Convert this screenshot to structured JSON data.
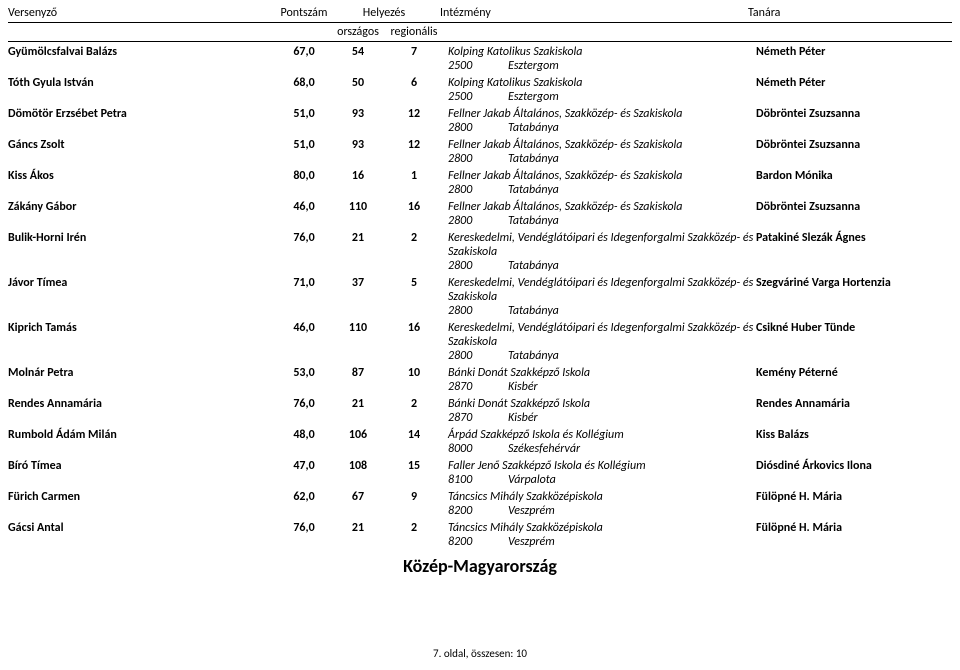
{
  "headers": {
    "name": "Versenyző",
    "score": "Pontszám",
    "place": "Helyezés",
    "nat": "országos",
    "reg": "regionális",
    "institution": "Intézmény",
    "teacher": "Tanára"
  },
  "entries": [
    {
      "name": "Gyümölcsfalvai Balázs",
      "score": "67,0",
      "nat": "54",
      "reg": "7",
      "institution": "Kolping Katolikus Szakiskola",
      "teacher": "Németh Péter",
      "zip": "2500",
      "city": "Esztergom"
    },
    {
      "name": "Tóth Gyula István",
      "score": "68,0",
      "nat": "50",
      "reg": "6",
      "institution": "Kolping Katolikus Szakiskola",
      "teacher": "Németh Péter",
      "zip": "2500",
      "city": "Esztergom"
    },
    {
      "name": "Dömötör Erzsébet Petra",
      "score": "51,0",
      "nat": "93",
      "reg": "12",
      "institution": "Fellner Jakab Általános, Szakközép- és Szakiskola",
      "teacher": "Döbröntei Zsuzsanna",
      "zip": "2800",
      "city": "Tatabánya"
    },
    {
      "name": "Gáncs Zsolt",
      "score": "51,0",
      "nat": "93",
      "reg": "12",
      "institution": "Fellner Jakab Általános, Szakközép- és Szakiskola",
      "teacher": "Döbröntei Zsuzsanna",
      "zip": "2800",
      "city": "Tatabánya"
    },
    {
      "name": "Kiss Ákos",
      "score": "80,0",
      "nat": "16",
      "reg": "1",
      "institution": "Fellner Jakab Általános, Szakközép- és Szakiskola",
      "teacher": "Bardon Mónika",
      "zip": "2800",
      "city": "Tatabánya"
    },
    {
      "name": "Zákány Gábor",
      "score": "46,0",
      "nat": "110",
      "reg": "16",
      "institution": "Fellner Jakab Általános, Szakközép- és Szakiskola",
      "teacher": "Döbröntei Zsuzsanna",
      "zip": "2800",
      "city": "Tatabánya"
    },
    {
      "name": "Bulik-Horni Irén",
      "score": "76,0",
      "nat": "21",
      "reg": "2",
      "institution": "Kereskedelmi, Vendéglátóipari és Idegenforgalmi Szakközép- és Szakiskola",
      "teacher": "Patakiné Slezák Ágnes",
      "zip": "2800",
      "city": "Tatabánya"
    },
    {
      "name": "Jávor Tímea",
      "score": "71,0",
      "nat": "37",
      "reg": "5",
      "institution": "Kereskedelmi, Vendéglátóipari és Idegenforgalmi Szakközép- és Szakiskola",
      "teacher": "Szegváriné Varga Hortenzia",
      "zip": "2800",
      "city": "Tatabánya"
    },
    {
      "name": "Kiprich Tamás",
      "score": "46,0",
      "nat": "110",
      "reg": "16",
      "institution": "Kereskedelmi, Vendéglátóipari és Idegenforgalmi Szakközép- és Szakiskola",
      "teacher": "Csikné Huber Tünde",
      "zip": "2800",
      "city": "Tatabánya"
    },
    {
      "name": "Molnár Petra",
      "score": "53,0",
      "nat": "87",
      "reg": "10",
      "institution": "Bánki Donát Szakképző Iskola",
      "teacher": "Kemény Péterné",
      "zip": "2870",
      "city": "Kisbér"
    },
    {
      "name": "Rendes Annamária",
      "score": "76,0",
      "nat": "21",
      "reg": "2",
      "institution": "Bánki Donát Szakképző Iskola",
      "teacher": "Rendes Annamária",
      "zip": "2870",
      "city": "Kisbér"
    },
    {
      "name": "Rumbold Ádám Milán",
      "score": "48,0",
      "nat": "106",
      "reg": "14",
      "institution": "Árpád Szakképző Iskola és Kollégium",
      "teacher": "Kiss Balázs",
      "zip": "8000",
      "city": "Székesfehérvár"
    },
    {
      "name": "Bíró Tímea",
      "score": "47,0",
      "nat": "108",
      "reg": "15",
      "institution": "Faller Jenő Szakképző Iskola és Kollégium",
      "teacher": "Diósdiné Árkovics Ilona",
      "zip": "8100",
      "city": "Várpalota"
    },
    {
      "name": "Fürich Carmen",
      "score": "62,0",
      "nat": "67",
      "reg": "9",
      "institution": "Táncsics Mihály Szakközépiskola",
      "teacher": "Fülöpné H. Mária",
      "zip": "8200",
      "city": "Veszprém"
    },
    {
      "name": "Gácsi Antal",
      "score": "76,0",
      "nat": "21",
      "reg": "2",
      "institution": "Táncsics Mihály Szakközépiskola",
      "teacher": "Fülöpné H. Mária",
      "zip": "8200",
      "city": "Veszprém"
    }
  ],
  "region_title": "Közép-Magyarország",
  "footer": "7. oldal, összesen: 10"
}
